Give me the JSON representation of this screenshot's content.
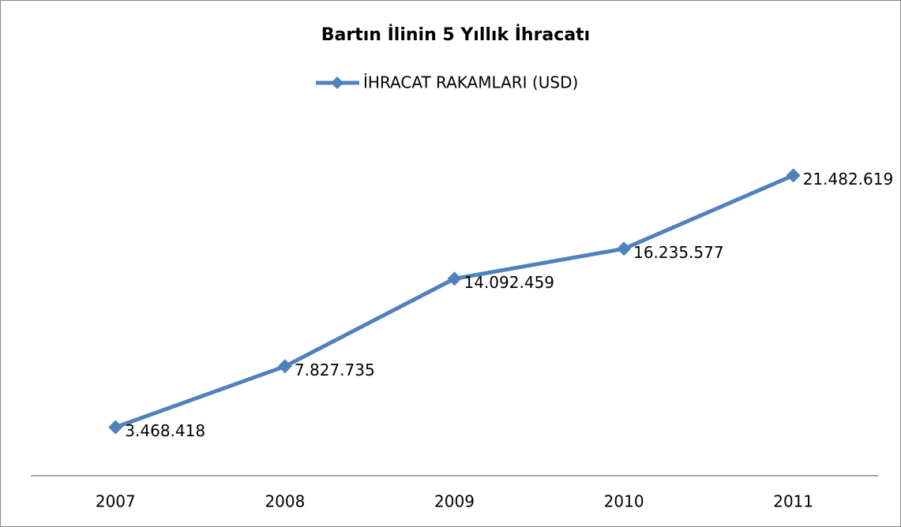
{
  "chart_data": {
    "type": "line",
    "title": "Bartın İlinin 5 Yıllık İhracatı",
    "categories": [
      "2007",
      "2008",
      "2009",
      "2010",
      "2011"
    ],
    "series": [
      {
        "name": "İHRACAT RAKAMLARI (USD)",
        "color": "#4f81bd",
        "values": [
          3468418,
          7827735,
          14092459,
          16235577,
          21482619
        ],
        "value_labels": [
          "3.468.418",
          "7.827.735",
          "14.092.459",
          "16.235.577",
          "21.482.619"
        ]
      }
    ],
    "ylim": [
      0,
      25000000
    ],
    "legend": "top"
  }
}
